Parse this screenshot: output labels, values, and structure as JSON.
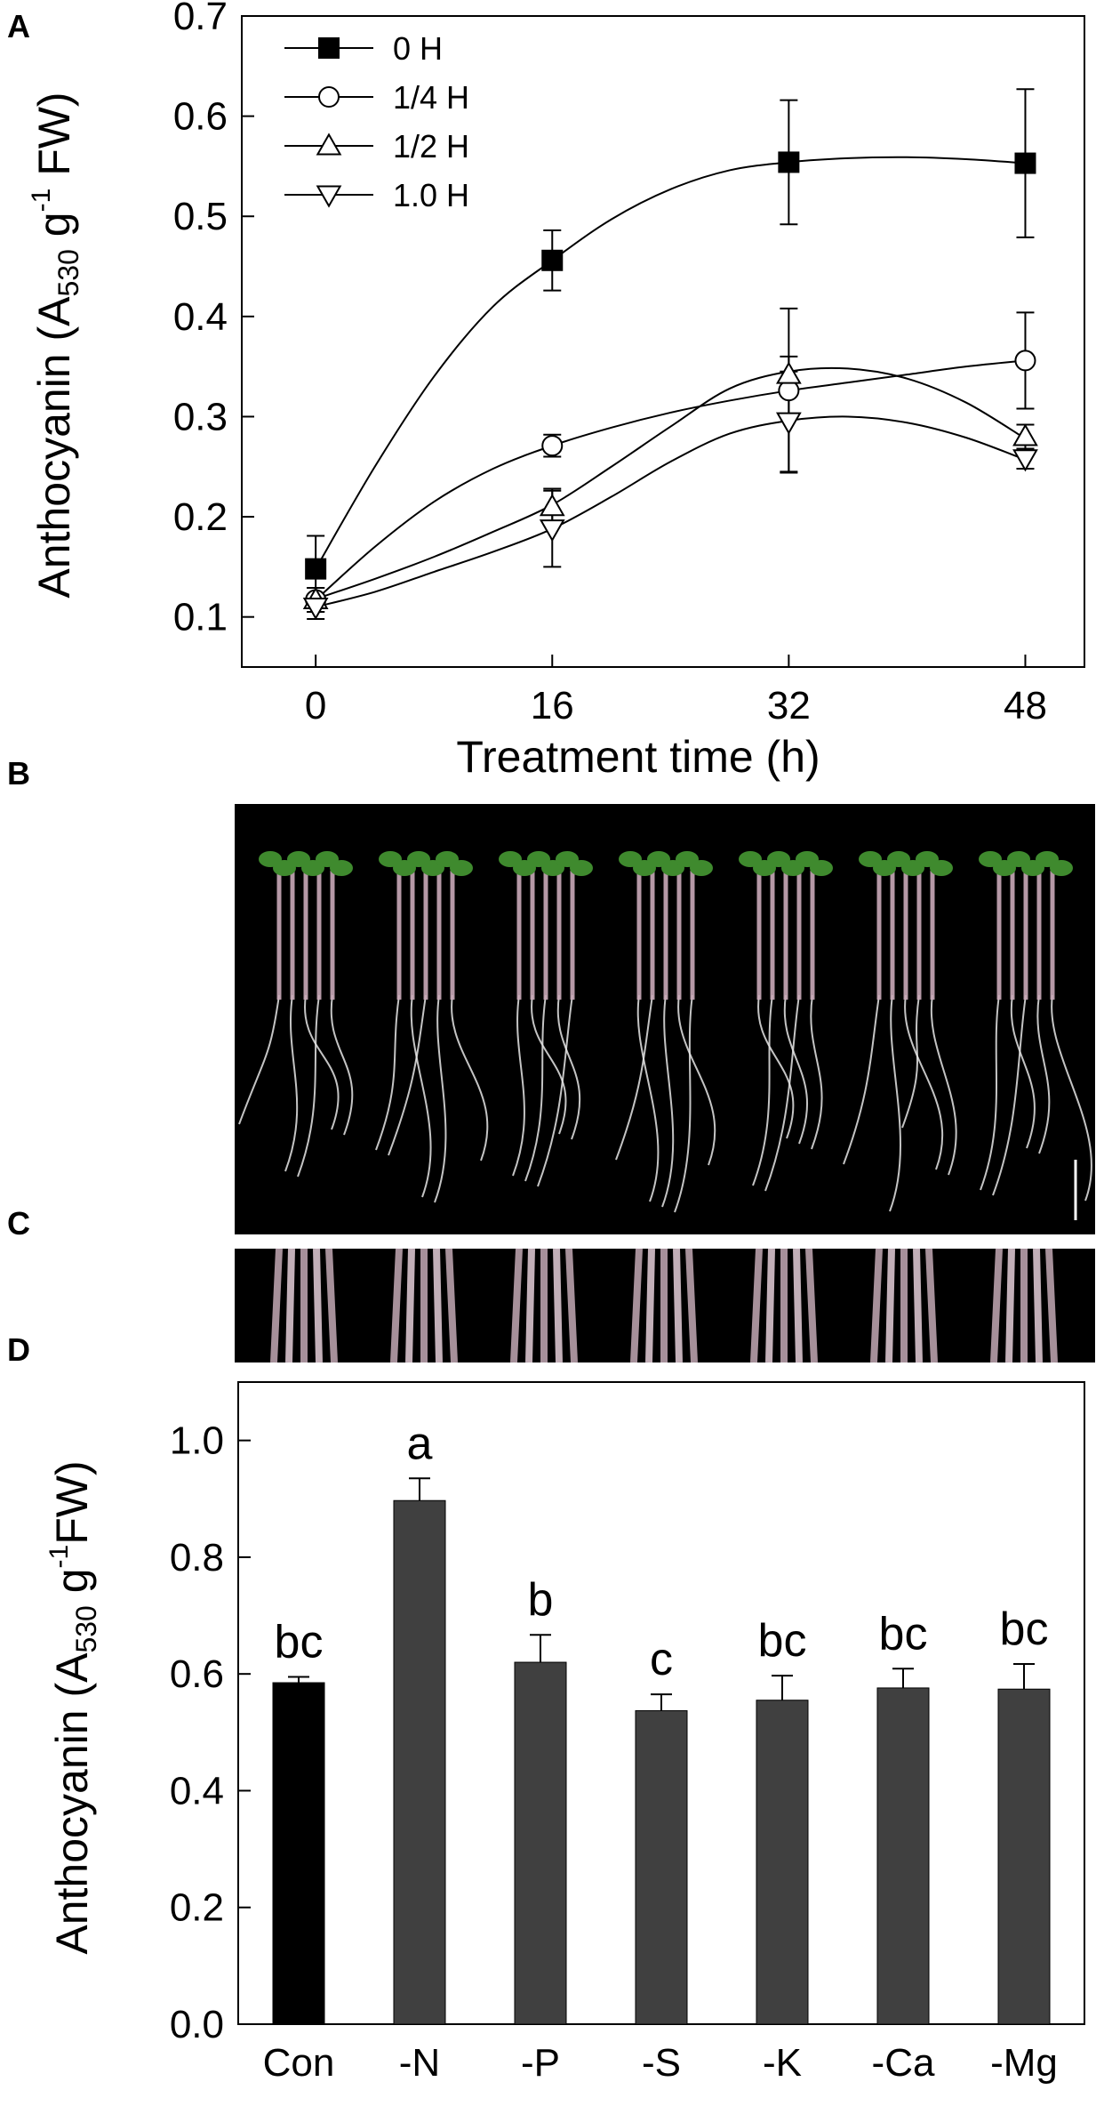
{
  "panels": {
    "a": {
      "letter": "A"
    },
    "b": {
      "letter": "B"
    },
    "c": {
      "letter": "C"
    },
    "d": {
      "letter": "D"
    }
  },
  "chart_data": [
    {
      "panel": "A",
      "type": "line",
      "xlabel": "Treatment time (h)",
      "ylabel_parts": [
        "Anthocyanin (A",
        "530",
        " g",
        "-1",
        " FW)"
      ],
      "x": [
        0,
        16,
        32,
        48
      ],
      "xticks": [
        "0",
        "16",
        "32",
        "48"
      ],
      "xlim": [
        -5,
        52
      ],
      "ylim": [
        0.05,
        0.7
      ],
      "yticks": [
        "0.1",
        "0.2",
        "0.3",
        "0.4",
        "0.5",
        "0.6",
        "0.7"
      ],
      "legend_position": "top-left",
      "series": [
        {
          "name": "0 H",
          "marker": "filled-square",
          "values": [
            0.148,
            0.456,
            0.554,
            0.553
          ],
          "errors": [
            0.033,
            0.03,
            0.062,
            0.074
          ],
          "curve": [
            [
              0,
              0.148
            ],
            [
              4,
              0.25
            ],
            [
              8,
              0.34
            ],
            [
              12,
              0.41
            ],
            [
              16,
              0.456
            ],
            [
              20,
              0.497
            ],
            [
              24,
              0.527
            ],
            [
              28,
              0.546
            ],
            [
              32,
              0.554
            ],
            [
              36,
              0.558
            ],
            [
              40,
              0.559
            ],
            [
              44,
              0.557
            ],
            [
              48,
              0.553
            ]
          ]
        },
        {
          "name": "1/4 H",
          "marker": "open-circle",
          "values": [
            0.117,
            0.271,
            0.326,
            0.356
          ],
          "errors": [
            0.012,
            0.011,
            0.082,
            0.048
          ],
          "curve": [
            [
              0,
              0.117
            ],
            [
              4,
              0.17
            ],
            [
              8,
              0.215
            ],
            [
              12,
              0.248
            ],
            [
              16,
              0.271
            ],
            [
              20,
              0.289
            ],
            [
              24,
              0.304
            ],
            [
              28,
              0.316
            ],
            [
              32,
              0.326
            ],
            [
              36,
              0.334
            ],
            [
              40,
              0.342
            ],
            [
              44,
              0.35
            ],
            [
              48,
              0.356
            ]
          ]
        },
        {
          "name": "1/2 H",
          "marker": "open-triangle-up",
          "values": [
            0.117,
            0.21,
            0.342,
            0.28
          ],
          "errors": [
            0.012,
            0.018,
            0.018,
            0.012
          ],
          "curve": [
            [
              0,
              0.118
            ],
            [
              4,
              0.138
            ],
            [
              8,
              0.16
            ],
            [
              12,
              0.185
            ],
            [
              16,
              0.212
            ],
            [
              20,
              0.25
            ],
            [
              24,
              0.29
            ],
            [
              28,
              0.328
            ],
            [
              32,
              0.345
            ],
            [
              36,
              0.348
            ],
            [
              40,
              0.338
            ],
            [
              44,
              0.314
            ],
            [
              48,
              0.278
            ]
          ]
        },
        {
          "name": "1.0 H",
          "marker": "open-triangle-down",
          "values": [
            0.11,
            0.188,
            0.295,
            0.258
          ],
          "errors": [
            0.012,
            0.038,
            0.05,
            0.01
          ],
          "curve": [
            [
              0,
              0.11
            ],
            [
              4,
              0.125
            ],
            [
              8,
              0.145
            ],
            [
              12,
              0.165
            ],
            [
              16,
              0.188
            ],
            [
              20,
              0.22
            ],
            [
              24,
              0.255
            ],
            [
              28,
              0.283
            ],
            [
              32,
              0.296
            ],
            [
              36,
              0.3
            ],
            [
              40,
              0.294
            ],
            [
              44,
              0.279
            ],
            [
              48,
              0.257
            ]
          ]
        }
      ]
    },
    {
      "panel": "D",
      "type": "bar",
      "ylabel_parts": [
        "Anthocyanin (A",
        "530",
        " g",
        "-1",
        "FW)"
      ],
      "categories": [
        "Con",
        "-N",
        "-P",
        "-S",
        "-K",
        "-Ca",
        "-Mg"
      ],
      "values": [
        0.585,
        0.897,
        0.62,
        0.537,
        0.555,
        0.576,
        0.574
      ],
      "errors": [
        0.01,
        0.038,
        0.047,
        0.028,
        0.042,
        0.033,
        0.043
      ],
      "significance": [
        "bc",
        "a",
        "b",
        "c",
        "bc",
        "bc",
        "bc"
      ],
      "colors": [
        "#000000",
        "#404040",
        "#404040",
        "#404040",
        "#404040",
        "#404040",
        "#404040"
      ],
      "ylim": [
        0,
        1.1
      ],
      "yticks": [
        "0.0",
        "0.2",
        "0.4",
        "0.6",
        "0.8",
        "1.0"
      ]
    }
  ],
  "photos": {
    "b_plant_count": 7,
    "c_stem_groups": 7,
    "background": "#000000",
    "leaf_color": "#3f8a2e",
    "stem_color": "#c9a9b8",
    "root_color": "#e6e6e6"
  }
}
